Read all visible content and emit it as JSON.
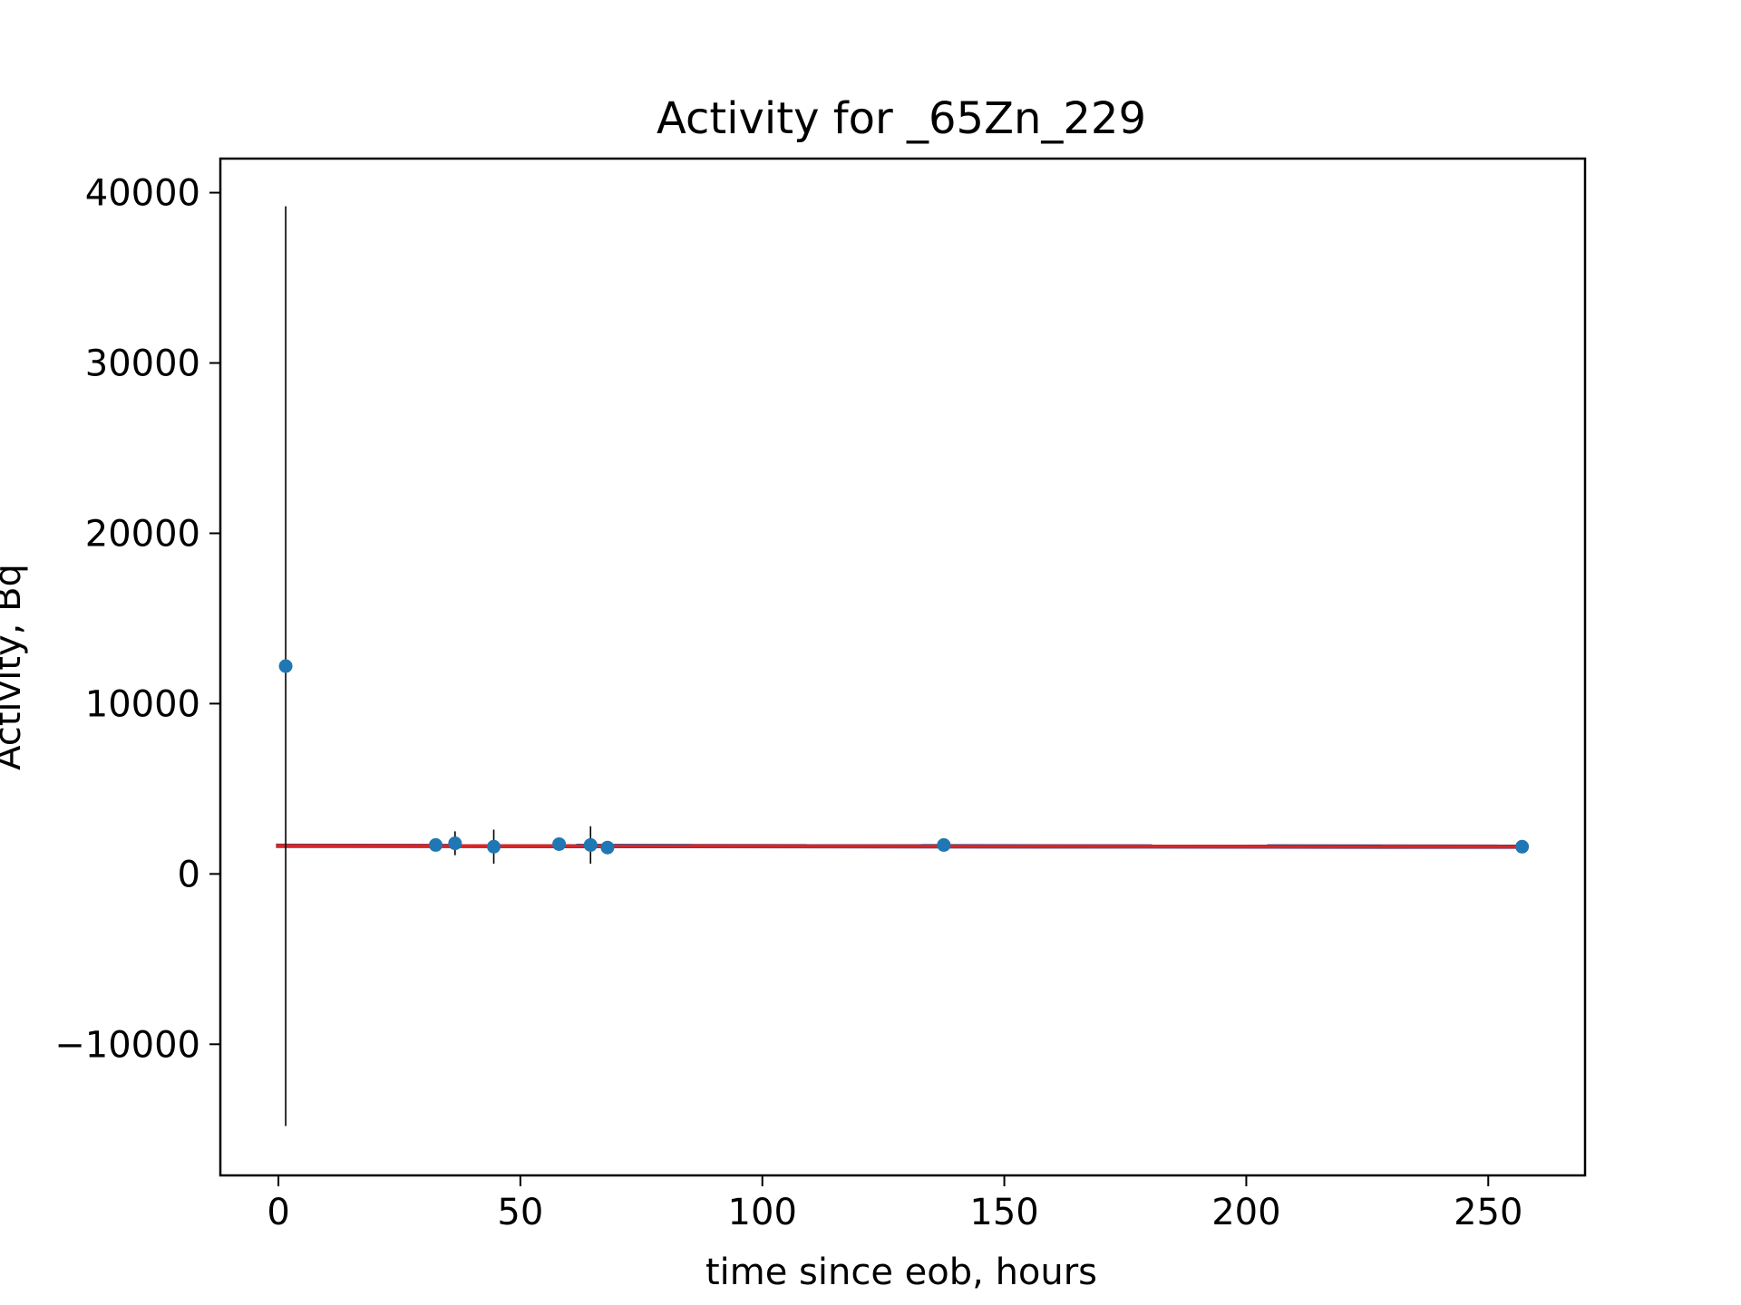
{
  "chart_data": {
    "type": "scatter",
    "title": "Activity for _65Zn_229",
    "xlabel": "time since eob, hours",
    "ylabel": "Activity, Bq",
    "xlim": [
      -12,
      270
    ],
    "ylim": [
      -17700,
      42000
    ],
    "xticks": [
      0,
      50,
      100,
      150,
      200,
      250
    ],
    "xtick_labels": [
      "0",
      "50",
      "100",
      "150",
      "200",
      "250"
    ],
    "yticks": [
      -10000,
      0,
      10000,
      20000,
      30000,
      40000
    ],
    "ytick_labels": [
      "−10000",
      "0",
      "10000",
      "20000",
      "30000",
      "40000"
    ],
    "grid": false,
    "colors": {
      "points": "#1f77b4",
      "errorbars": "#000000",
      "fit_line": "#d62728",
      "fit_band": "#1f3a7a"
    },
    "series": [
      {
        "kind": "points_with_errorbars",
        "points": [
          {
            "x": 1.5,
            "y": 12200,
            "err": 27000
          },
          {
            "x": 32.5,
            "y": 1700,
            "err": 0
          },
          {
            "x": 36.5,
            "y": 1800,
            "err": 700
          },
          {
            "x": 44.5,
            "y": 1600,
            "err": 1000
          },
          {
            "x": 58,
            "y": 1750,
            "err": 0
          },
          {
            "x": 64.5,
            "y": 1700,
            "err": 1100
          },
          {
            "x": 68,
            "y": 1550,
            "err": 0
          },
          {
            "x": 137.5,
            "y": 1700,
            "err": 0
          },
          {
            "x": 257,
            "y": 1600,
            "err": 0
          }
        ]
      },
      {
        "kind": "fit_line",
        "x": [
          -0.5,
          257
        ],
        "y": [
          1650,
          1600
        ],
        "band_width": 150
      }
    ]
  }
}
